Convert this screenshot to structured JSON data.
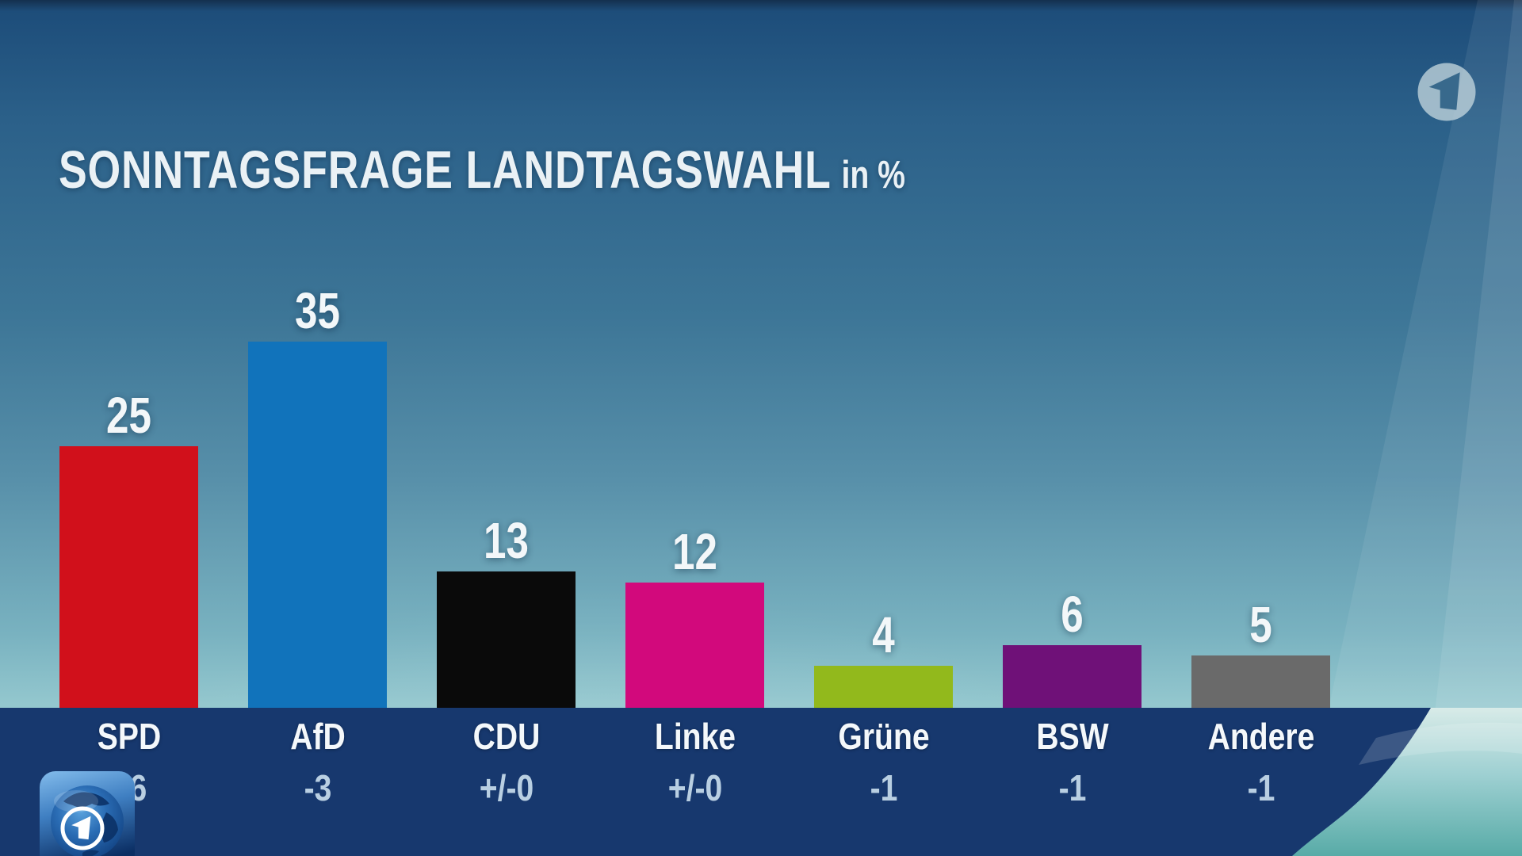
{
  "title": {
    "main": "SONNTAGSFRAGE LANDTAGSWAHL",
    "unit": "in %"
  },
  "branding": {
    "top_right_logo": "ard-das-erste-1-logo",
    "bottom_left_logo": "tagesschau-globe-1-app-icon"
  },
  "colors": {
    "footer_band": "#17386e",
    "value_text": "#f3f7f9",
    "party_text": "#f4f8fb",
    "change_text": "#b9cfe2"
  },
  "chart_data": {
    "type": "bar",
    "title": "SONNTAGSFRAGE LANDTAGSWAHL",
    "unit": "in %",
    "categories": [
      "SPD",
      "AfD",
      "CDU",
      "Linke",
      "Grüne",
      "BSW",
      "Andere"
    ],
    "values": [
      25,
      35,
      13,
      12,
      4,
      6,
      5
    ],
    "changes": [
      "+6",
      "-3",
      "+/-0",
      "+/-0",
      "-1",
      "-1",
      "-1"
    ],
    "bar_colors": [
      "#d1101b",
      "#1173bb",
      "#0a0a0a",
      "#d2097c",
      "#92b91c",
      "#6f1178",
      "#6a6a6a"
    ],
    "ylim": [
      0,
      38
    ],
    "grid": false,
    "legend": false,
    "value_labels": "above bars",
    "category_labels": "in footer band with change values below"
  }
}
